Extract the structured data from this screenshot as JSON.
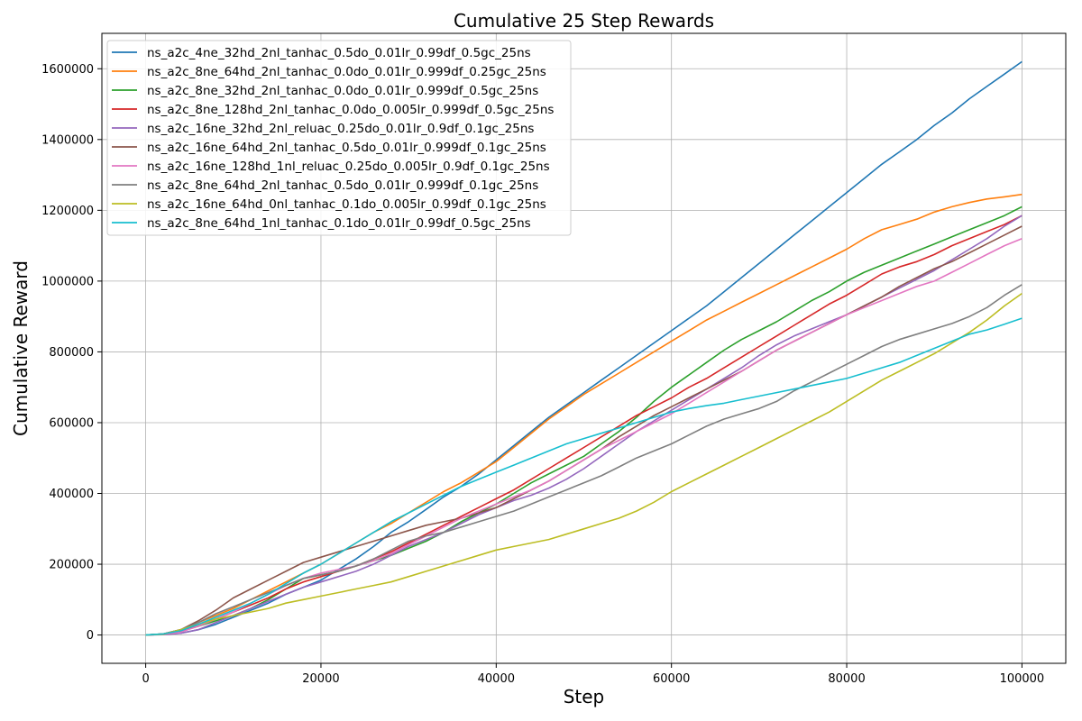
{
  "chart_data": {
    "type": "line",
    "title": "Cumulative 25 Step Rewards",
    "xlabel": "Step",
    "ylabel": "Cumulative Reward",
    "xlim": [
      -5000,
      105000
    ],
    "ylim": [
      -80000,
      1700000
    ],
    "xticks": [
      0,
      20000,
      40000,
      60000,
      80000,
      100000
    ],
    "yticks": [
      0,
      200000,
      400000,
      600000,
      800000,
      1000000,
      1200000,
      1400000,
      1600000
    ],
    "grid": true,
    "legend_position": "top-left",
    "x": [
      0,
      2000,
      4000,
      6000,
      8000,
      10000,
      12000,
      14000,
      16000,
      18000,
      20000,
      22000,
      24000,
      26000,
      28000,
      30000,
      32000,
      34000,
      36000,
      38000,
      40000,
      42000,
      44000,
      46000,
      48000,
      50000,
      52000,
      54000,
      56000,
      58000,
      60000,
      62000,
      64000,
      66000,
      68000,
      70000,
      72000,
      74000,
      76000,
      78000,
      80000,
      82000,
      84000,
      86000,
      88000,
      90000,
      92000,
      94000,
      96000,
      98000,
      100000
    ],
    "series": [
      {
        "name": "ns_a2c_4ne_32hd_2nl_tanhac_0.5do_0.01lr_0.99df_0.5gc_25ns",
        "color": "#1f77b4",
        "values": [
          0,
          2000,
          5000,
          15000,
          30000,
          50000,
          70000,
          90000,
          115000,
          135000,
          155000,
          185000,
          215000,
          250000,
          290000,
          320000,
          355000,
          390000,
          420000,
          455000,
          495000,
          535000,
          575000,
          615000,
          650000,
          685000,
          720000,
          755000,
          790000,
          825000,
          860000,
          895000,
          930000,
          970000,
          1010000,
          1050000,
          1090000,
          1130000,
          1170000,
          1210000,
          1250000,
          1290000,
          1330000,
          1365000,
          1400000,
          1440000,
          1475000,
          1515000,
          1550000,
          1585000,
          1620000
        ]
      },
      {
        "name": "ns_a2c_8ne_64hd_2nl_tanhac_0.0do_0.01lr_0.999df_0.25gc_25ns",
        "color": "#ff7f0e",
        "values": [
          0,
          3000,
          15000,
          35000,
          55000,
          75000,
          100000,
          125000,
          150000,
          175000,
          200000,
          230000,
          260000,
          290000,
          315000,
          345000,
          375000,
          405000,
          430000,
          460000,
          490000,
          530000,
          570000,
          610000,
          645000,
          680000,
          710000,
          740000,
          770000,
          800000,
          830000,
          860000,
          890000,
          915000,
          940000,
          965000,
          990000,
          1015000,
          1040000,
          1065000,
          1090000,
          1120000,
          1145000,
          1160000,
          1175000,
          1195000,
          1210000,
          1222000,
          1232000,
          1238000,
          1245000
        ]
      },
      {
        "name": "ns_a2c_8ne_32hd_2nl_tanhac_0.0do_0.01lr_0.999df_0.5gc_25ns",
        "color": "#2ca02c",
        "values": [
          0,
          3000,
          12000,
          25000,
          40000,
          55000,
          75000,
          100000,
          130000,
          160000,
          170000,
          180000,
          195000,
          210000,
          225000,
          245000,
          265000,
          290000,
          320000,
          345000,
          370000,
          400000,
          430000,
          455000,
          480000,
          505000,
          540000,
          575000,
          615000,
          660000,
          700000,
          735000,
          770000,
          805000,
          835000,
          860000,
          885000,
          915000,
          945000,
          970000,
          1000000,
          1025000,
          1045000,
          1065000,
          1085000,
          1105000,
          1125000,
          1145000,
          1165000,
          1185000,
          1210000
        ]
      },
      {
        "name": "ns_a2c_8ne_128hd_2nl_tanhac_0.0do_0.005lr_0.999df_0.5gc_25ns",
        "color": "#d62728",
        "values": [
          0,
          2000,
          10000,
          25000,
          45000,
          65000,
          85000,
          105000,
          130000,
          150000,
          165000,
          180000,
          195000,
          215000,
          235000,
          260000,
          285000,
          310000,
          335000,
          360000,
          385000,
          410000,
          440000,
          470000,
          500000,
          530000,
          560000,
          590000,
          620000,
          645000,
          670000,
          700000,
          725000,
          755000,
          785000,
          815000,
          845000,
          875000,
          905000,
          935000,
          960000,
          990000,
          1020000,
          1040000,
          1055000,
          1075000,
          1100000,
          1120000,
          1140000,
          1160000,
          1185000
        ]
      },
      {
        "name": "ns_a2c_16ne_32hd_2nl_reluac_0.25do_0.01lr_0.9df_0.1gc_25ns",
        "color": "#9467bd",
        "values": [
          0,
          1000,
          5000,
          15000,
          35000,
          55000,
          75000,
          95000,
          115000,
          135000,
          150000,
          165000,
          180000,
          200000,
          225000,
          250000,
          270000,
          290000,
          315000,
          340000,
          360000,
          380000,
          395000,
          415000,
          440000,
          470000,
          505000,
          540000,
          575000,
          605000,
          635000,
          665000,
          695000,
          725000,
          755000,
          790000,
          820000,
          845000,
          865000,
          885000,
          905000,
          930000,
          955000,
          980000,
          1005000,
          1030000,
          1060000,
          1090000,
          1120000,
          1155000,
          1185000
        ]
      },
      {
        "name": "ns_a2c_16ne_64hd_2nl_tanhac_0.5do_0.01lr_0.999df_0.1gc_25ns",
        "color": "#8c564b",
        "values": [
          0,
          3000,
          15000,
          40000,
          70000,
          105000,
          130000,
          155000,
          180000,
          205000,
          220000,
          235000,
          250000,
          265000,
          280000,
          295000,
          310000,
          320000,
          330000,
          345000,
          360000,
          385000,
          410000,
          435000,
          465000,
          495000,
          525000,
          560000,
          590000,
          620000,
          645000,
          670000,
          695000,
          720000,
          745000,
          775000,
          805000,
          830000,
          855000,
          880000,
          905000,
          930000,
          955000,
          985000,
          1010000,
          1035000,
          1055000,
          1080000,
          1105000,
          1130000,
          1155000
        ]
      },
      {
        "name": "ns_a2c_16ne_128hd_1nl_reluac_0.25do_0.005lr_0.9df_0.1gc_25ns",
        "color": "#e377c2",
        "values": [
          0,
          2000,
          8000,
          25000,
          45000,
          65000,
          90000,
          115000,
          140000,
          160000,
          175000,
          185000,
          195000,
          210000,
          230000,
          255000,
          280000,
          305000,
          330000,
          350000,
          370000,
          390000,
          410000,
          435000,
          465000,
          495000,
          525000,
          550000,
          575000,
          600000,
          625000,
          655000,
          685000,
          715000,
          745000,
          775000,
          805000,
          830000,
          855000,
          880000,
          905000,
          925000,
          945000,
          965000,
          985000,
          1000000,
          1025000,
          1050000,
          1075000,
          1100000,
          1120000
        ]
      },
      {
        "name": "ns_a2c_8ne_64hd_2nl_tanhac_0.5do_0.01lr_0.999df_0.1gc_25ns",
        "color": "#7f7f7f",
        "values": [
          0,
          3000,
          15000,
          35000,
          60000,
          80000,
          100000,
          120000,
          140000,
          160000,
          170000,
          180000,
          195000,
          215000,
          240000,
          265000,
          280000,
          290000,
          305000,
          320000,
          335000,
          350000,
          370000,
          390000,
          410000,
          430000,
          450000,
          475000,
          500000,
          520000,
          540000,
          565000,
          590000,
          610000,
          625000,
          640000,
          660000,
          690000,
          715000,
          740000,
          765000,
          790000,
          815000,
          835000,
          850000,
          865000,
          880000,
          900000,
          925000,
          960000,
          990000
        ]
      },
      {
        "name": "ns_a2c_16ne_64hd_0nl_tanhac_0.1do_0.005lr_0.99df_0.1gc_25ns",
        "color": "#bcbd22",
        "values": [
          0,
          2000,
          15000,
          30000,
          45000,
          55000,
          65000,
          75000,
          90000,
          100000,
          110000,
          120000,
          130000,
          140000,
          150000,
          165000,
          180000,
          195000,
          210000,
          225000,
          240000,
          250000,
          260000,
          270000,
          285000,
          300000,
          315000,
          330000,
          350000,
          375000,
          405000,
          430000,
          455000,
          480000,
          505000,
          530000,
          555000,
          580000,
          605000,
          630000,
          660000,
          690000,
          720000,
          745000,
          770000,
          795000,
          825000,
          855000,
          890000,
          930000,
          965000
        ]
      },
      {
        "name": "ns_a2c_8ne_64hd_1nl_tanhac_0.1do_0.01lr_0.99df_0.5gc_25ns",
        "color": "#17becf",
        "values": [
          0,
          3000,
          12000,
          30000,
          50000,
          70000,
          90000,
          115000,
          145000,
          175000,
          200000,
          230000,
          260000,
          290000,
          320000,
          345000,
          370000,
          395000,
          420000,
          440000,
          460000,
          480000,
          500000,
          520000,
          540000,
          555000,
          570000,
          585000,
          600000,
          615000,
          630000,
          640000,
          648000,
          655000,
          665000,
          675000,
          685000,
          695000,
          705000,
          715000,
          725000,
          740000,
          755000,
          770000,
          790000,
          810000,
          830000,
          850000,
          862000,
          878000,
          895000
        ]
      }
    ]
  }
}
